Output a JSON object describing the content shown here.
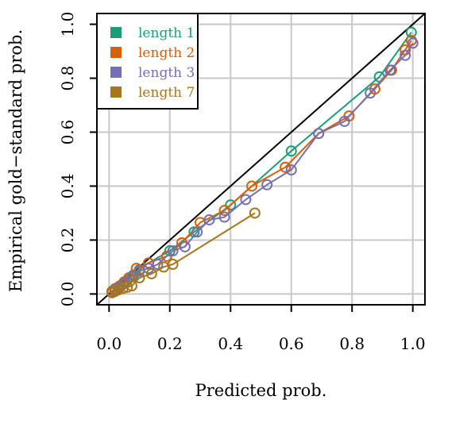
{
  "chart_data": {
    "type": "line",
    "xlabel": "Predicted prob.",
    "ylabel": "Empirical gold−standard prob.",
    "xlim": [
      -0.04,
      1.04
    ],
    "ylim": [
      -0.04,
      1.04
    ],
    "xticks": [
      0.0,
      0.2,
      0.4,
      0.6,
      0.8,
      1.0
    ],
    "yticks": [
      0.0,
      0.2,
      0.4,
      0.6,
      0.8,
      1.0
    ],
    "xtick_labels": [
      "0.0",
      "0.2",
      "0.4",
      "0.6",
      "0.8",
      "1.0"
    ],
    "ytick_labels": [
      "0.0",
      "0.2",
      "0.4",
      "0.6",
      "0.8",
      "1.0"
    ],
    "grid": true,
    "diagonal_reference": true,
    "legend_position": "top-left",
    "series": [
      {
        "name": "length 1",
        "color": "#1b9e77",
        "points": [
          [
            0.01,
            0.01
          ],
          [
            0.02,
            0.015
          ],
          [
            0.03,
            0.025
          ],
          [
            0.045,
            0.035
          ],
          [
            0.06,
            0.05
          ],
          [
            0.08,
            0.07
          ],
          [
            0.1,
            0.09
          ],
          [
            0.13,
            0.115
          ],
          [
            0.2,
            0.16
          ],
          [
            0.28,
            0.23
          ],
          [
            0.4,
            0.33
          ],
          [
            0.6,
            0.53
          ],
          [
            0.89,
            0.805
          ],
          [
            0.995,
            0.97
          ]
        ]
      },
      {
        "name": "length 2",
        "color": "#d95f02",
        "points": [
          [
            0.01,
            0.01
          ],
          [
            0.02,
            0.02
          ],
          [
            0.035,
            0.03
          ],
          [
            0.05,
            0.045
          ],
          [
            0.065,
            0.06
          ],
          [
            0.09,
            0.095
          ],
          [
            0.13,
            0.115
          ],
          [
            0.19,
            0.14
          ],
          [
            0.24,
            0.19
          ],
          [
            0.3,
            0.265
          ],
          [
            0.38,
            0.31
          ],
          [
            0.47,
            0.4
          ],
          [
            0.58,
            0.47
          ],
          [
            0.69,
            0.595
          ],
          [
            0.79,
            0.66
          ],
          [
            0.875,
            0.76
          ],
          [
            0.93,
            0.83
          ],
          [
            0.975,
            0.905
          ],
          [
            0.995,
            0.94
          ]
        ]
      },
      {
        "name": "length 3",
        "color": "#7570b3",
        "points": [
          [
            0.01,
            0.005
          ],
          [
            0.02,
            0.015
          ],
          [
            0.035,
            0.025
          ],
          [
            0.05,
            0.04
          ],
          [
            0.075,
            0.065
          ],
          [
            0.1,
            0.085
          ],
          [
            0.13,
            0.095
          ],
          [
            0.16,
            0.11
          ],
          [
            0.21,
            0.16
          ],
          [
            0.25,
            0.175
          ],
          [
            0.29,
            0.23
          ],
          [
            0.33,
            0.275
          ],
          [
            0.38,
            0.285
          ],
          [
            0.45,
            0.35
          ],
          [
            0.52,
            0.405
          ],
          [
            0.6,
            0.46
          ],
          [
            0.69,
            0.595
          ],
          [
            0.775,
            0.64
          ],
          [
            0.86,
            0.745
          ],
          [
            0.925,
            0.83
          ],
          [
            0.975,
            0.885
          ],
          [
            1.0,
            0.93
          ]
        ]
      },
      {
        "name": "length 7",
        "color": "#a6761d",
        "points": [
          [
            0.01,
            0.005
          ],
          [
            0.02,
            0.01
          ],
          [
            0.03,
            0.015
          ],
          [
            0.045,
            0.02
          ],
          [
            0.06,
            0.025
          ],
          [
            0.075,
            0.03
          ],
          [
            0.1,
            0.06
          ],
          [
            0.14,
            0.075
          ],
          [
            0.18,
            0.1
          ],
          [
            0.21,
            0.11
          ],
          [
            0.48,
            0.3
          ]
        ]
      }
    ]
  }
}
